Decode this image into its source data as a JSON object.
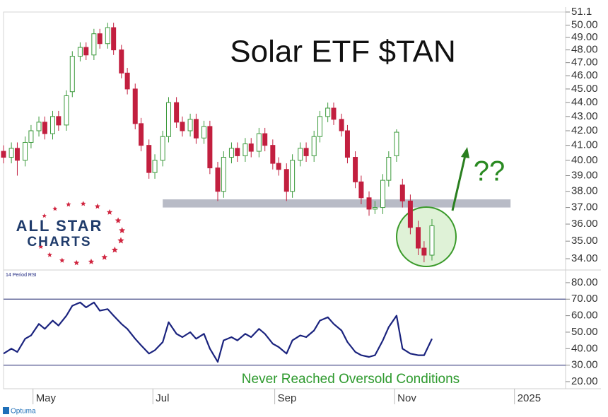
{
  "chart_data": [
    {
      "type": "candlestick",
      "title": "Solar ETF $TAN",
      "annotation": "??",
      "x": [
        107,
        111,
        114,
        118,
        121,
        125,
        128,
        132,
        135,
        139,
        142,
        146,
        149,
        153,
        156,
        160,
        163,
        167,
        170,
        174,
        177,
        181,
        184,
        188,
        191,
        195,
        198,
        202,
        205,
        209,
        212,
        216,
        219,
        223,
        226,
        230,
        233,
        237,
        240,
        244,
        247,
        251,
        254,
        258,
        261,
        265,
        268,
        272,
        275,
        279,
        282,
        286,
        289,
        293,
        296,
        300,
        303,
        307,
        310,
        314,
        318,
        321,
        325
      ],
      "open": [
        40.6,
        40.2,
        40.8,
        40.0,
        41.2,
        42.0,
        42.6,
        41.8,
        43.0,
        42.4,
        44.8,
        47.5,
        48.2,
        47.6,
        49.3,
        48.5,
        49.8,
        48.0,
        46.2,
        45.0,
        42.5,
        41.0,
        39.2,
        40.0,
        41.6,
        44.0,
        42.6,
        42.0,
        42.8,
        41.5,
        42.3,
        39.5,
        38.0,
        40.2,
        40.8,
        40.3,
        41.1,
        40.6,
        41.8,
        41.0,
        39.8,
        39.4,
        38.0,
        40.0,
        40.8,
        40.3,
        41.6,
        43.0,
        43.6,
        42.8,
        42.0,
        40.2,
        38.6,
        37.6,
        36.9,
        37.0,
        38.7,
        40.3,
        38.4,
        37.4,
        35.8,
        34.6,
        34.2
      ],
      "high": [
        41.0,
        41.2,
        41.2,
        41.6,
        42.4,
        43.0,
        43.0,
        43.4,
        43.4,
        44.9,
        47.9,
        48.6,
        48.6,
        49.7,
        49.7,
        50.2,
        50.2,
        48.4,
        46.6,
        45.4,
        42.9,
        41.4,
        40.4,
        42.0,
        44.4,
        44.4,
        43.0,
        43.2,
        43.2,
        42.7,
        42.7,
        39.9,
        40.6,
        41.2,
        41.2,
        41.5,
        41.5,
        42.2,
        42.2,
        41.4,
        40.2,
        39.8,
        40.4,
        41.2,
        41.2,
        42.0,
        43.4,
        44.0,
        44.0,
        43.2,
        42.4,
        40.6,
        39.0,
        38.0,
        37.4,
        39.1,
        40.6,
        42.1,
        38.8,
        37.8,
        36.2,
        35.0,
        36.3
      ],
      "low": [
        39.8,
        39.8,
        39.0,
        39.6,
        40.8,
        41.6,
        41.4,
        41.4,
        42.0,
        42.0,
        44.4,
        47.1,
        47.2,
        47.2,
        48.1,
        48.1,
        47.6,
        45.8,
        44.6,
        42.1,
        40.6,
        38.8,
        38.8,
        39.6,
        41.2,
        42.2,
        41.6,
        41.6,
        41.1,
        41.1,
        39.1,
        37.4,
        37.6,
        39.8,
        39.9,
        39.9,
        40.2,
        40.2,
        40.6,
        39.4,
        39.0,
        37.4,
        37.6,
        39.6,
        39.9,
        39.9,
        41.2,
        42.6,
        42.4,
        41.6,
        39.8,
        38.2,
        37.2,
        36.5,
        36.6,
        36.6,
        38.3,
        39.9,
        37.0,
        35.4,
        34.2,
        33.8,
        33.9
      ],
      "close": [
        40.2,
        40.8,
        40.0,
        41.2,
        42.0,
        42.6,
        41.8,
        43.0,
        42.4,
        44.5,
        47.5,
        48.2,
        47.6,
        49.3,
        48.5,
        49.8,
        48.0,
        46.2,
        45.0,
        42.5,
        41.0,
        39.2,
        40.0,
        41.6,
        44.0,
        42.6,
        42.0,
        42.8,
        41.5,
        42.3,
        39.5,
        38.0,
        40.2,
        40.8,
        40.3,
        41.1,
        40.6,
        41.8,
        41.0,
        39.8,
        39.4,
        38.0,
        40.0,
        40.8,
        40.3,
        41.6,
        43.0,
        43.6,
        42.8,
        42.0,
        40.2,
        38.6,
        37.6,
        36.9,
        37.0,
        38.7,
        40.2,
        41.9,
        37.4,
        35.8,
        34.6,
        34.2,
        35.9
      ],
      "up_color": "#3c9a3c",
      "down_color": "#c21f3f",
      "support_zone": {
        "x": [
          188,
          365
        ],
        "y": [
          37.0,
          37.5
        ],
        "color": "#b8bbc6"
      },
      "log_scale": true,
      "xlim": [
        107,
        393
      ],
      "ylim": [
        33.45,
        51.1
      ],
      "yticks": [
        {
          "value": 34,
          "label": "34.00"
        },
        {
          "value": 35,
          "label": "35.00"
        },
        {
          "value": 36,
          "label": "36.00"
        },
        {
          "value": 37,
          "label": "37.00"
        },
        {
          "value": 38,
          "label": "38.00"
        },
        {
          "value": 39,
          "label": "39.00"
        },
        {
          "value": 40,
          "label": "40.00"
        },
        {
          "value": 41,
          "label": "41.00"
        },
        {
          "value": 42,
          "label": "42.00"
        },
        {
          "value": 43,
          "label": "43.00"
        },
        {
          "value": 44,
          "label": "44.00"
        },
        {
          "value": 45,
          "label": "45.00"
        },
        {
          "value": 46,
          "label": "46.00"
        },
        {
          "value": 47,
          "label": "47.00"
        },
        {
          "value": 48,
          "label": "48.00"
        },
        {
          "value": 49,
          "label": "49.00"
        },
        {
          "value": 50,
          "label": "50.00"
        },
        51.1
      ]
    },
    {
      "type": "line",
      "title": "14 Period RSI",
      "annotation": "Never Reached Oversold Conditions",
      "x": [
        107,
        111,
        114,
        118,
        121,
        125,
        128,
        132,
        135,
        139,
        142,
        146,
        149,
        153,
        156,
        160,
        163,
        167,
        170,
        174,
        177,
        181,
        184,
        188,
        191,
        195,
        198,
        202,
        205,
        209,
        212,
        216,
        219,
        223,
        226,
        230,
        233,
        237,
        240,
        244,
        247,
        251,
        254,
        258,
        261,
        265,
        268,
        272,
        275,
        279,
        282,
        286,
        289,
        293,
        296,
        300,
        303,
        307,
        310,
        314,
        318,
        321,
        325
      ],
      "values": [
        37,
        40,
        38,
        46,
        48,
        55,
        52,
        57,
        54,
        60,
        66,
        68,
        65,
        68,
        63,
        64,
        60,
        55,
        52,
        46,
        42,
        37,
        39,
        44,
        56,
        49,
        47,
        50,
        46,
        49,
        40,
        32,
        45,
        47,
        45,
        49,
        47,
        52,
        49,
        43,
        41,
        37,
        45,
        48,
        47,
        51,
        57,
        59,
        55,
        51,
        44,
        38,
        36,
        35,
        36,
        45,
        53,
        60,
        40,
        37,
        36,
        36,
        46
      ],
      "color": "#1a237e",
      "levels": [
        70,
        30
      ],
      "level_color": "#4a4f8a",
      "xlim": [
        107,
        393
      ],
      "ylim": [
        15.7,
        86.4
      ],
      "yticks": [
        {
          "value": 20,
          "label": "20.00"
        },
        {
          "value": 30,
          "label": "30.00"
        },
        {
          "value": 40,
          "label": "40.00"
        },
        {
          "value": 50,
          "label": "50.00"
        },
        {
          "value": 60,
          "label": "60.00"
        },
        {
          "value": 70,
          "label": "70.00"
        },
        {
          "value": 80,
          "label": "80.00"
        }
      ],
      "xticks": [
        {
          "value": 122,
          "label": "May"
        },
        {
          "value": 183,
          "label": "Jul"
        },
        {
          "value": 245,
          "label": "Sep"
        },
        {
          "value": 306,
          "label": "Nov"
        },
        {
          "value": 367,
          "label": "2025"
        }
      ]
    }
  ],
  "logo": {
    "line1": "ALL STAR",
    "line2": "CHARTS"
  },
  "footer": "Optuma"
}
